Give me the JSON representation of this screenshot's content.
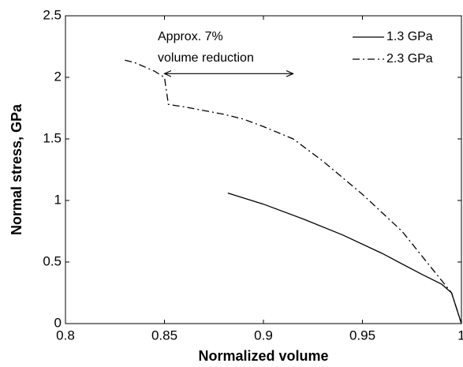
{
  "chart_data": {
    "type": "line",
    "xlabel": "Normalized volume",
    "ylabel": "Normal stress, GPa",
    "xlim": [
      0.8,
      1
    ],
    "xticks": [
      0.8,
      0.85,
      0.9,
      0.95,
      1
    ],
    "ylim": [
      0,
      2.5
    ],
    "yticks": [
      0,
      0.5,
      1,
      1.5,
      2,
      2.5
    ],
    "legend": "top-right",
    "series": [
      {
        "name": "1.3 GPa",
        "color": "#000000",
        "dash": "solid",
        "x": [
          0.882,
          0.9,
          0.92,
          0.94,
          0.96,
          0.98,
          0.99,
          0.995,
          1.0
        ],
        "values": [
          1.06,
          0.97,
          0.85,
          0.72,
          0.57,
          0.4,
          0.32,
          0.25,
          0
        ]
      },
      {
        "name": "2.3 GPa",
        "color": "#000000",
        "dash": "dash-dot",
        "x": [
          0.83,
          0.835,
          0.845,
          0.85,
          0.852,
          0.86,
          0.88,
          0.89,
          0.9,
          0.915,
          0.93,
          0.95,
          0.97,
          0.985,
          0.99,
          0.995,
          1.0
        ],
        "values": [
          2.14,
          2.12,
          2.05,
          2.0,
          1.78,
          1.76,
          1.7,
          1.66,
          1.6,
          1.5,
          1.32,
          1.05,
          0.75,
          0.45,
          0.35,
          0.25,
          0
        ]
      }
    ],
    "annotation": {
      "lines": [
        "Approx. 7%",
        "volume reduction"
      ],
      "arrow_x": [
        0.85,
        0.915
      ],
      "arrow_y": 2.03
    }
  }
}
